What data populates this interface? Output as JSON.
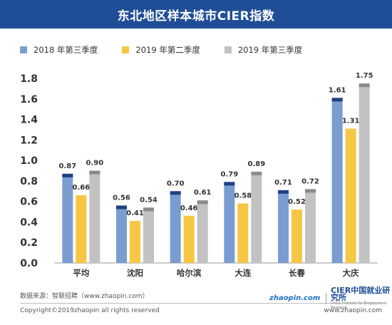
{
  "header": {
    "title": "东北地区样本城市CIER指数"
  },
  "legend": [
    {
      "label": "2018 年第三季度",
      "color": "#7a9dd0"
    },
    {
      "label": "2019 年第二季度",
      "color": "#f6c744"
    },
    {
      "label": "2019 年第三季度",
      "color": "#c2c2c2"
    }
  ],
  "chart_data": {
    "type": "bar",
    "categories": [
      "平均",
      "沈阳",
      "哈尔滨",
      "大连",
      "长春",
      "大庆"
    ],
    "series": [
      {
        "name": "2018 年第三季度",
        "values": [
          0.87,
          0.56,
          0.7,
          0.79,
          0.71,
          1.61
        ],
        "color": "#7a9dd0",
        "cap": "#1f3f84"
      },
      {
        "name": "2019 年第二季度",
        "values": [
          0.66,
          0.41,
          0.46,
          0.58,
          0.52,
          1.31
        ],
        "color": "#f6c744",
        "cap": "#f6c744"
      },
      {
        "name": "2019 年第三季度",
        "values": [
          0.9,
          0.54,
          0.61,
          0.89,
          0.72,
          1.75
        ],
        "color": "#c2c2c2",
        "cap": "#8a8a8a"
      }
    ],
    "data_labels": [
      [
        "0.87",
        "0.56",
        "0.70",
        "0.79",
        "0.71",
        "1.61"
      ],
      [
        "0.66",
        "0.41",
        "0.46",
        "0.58",
        "0.52",
        "1.31"
      ],
      [
        "0.90",
        "0.54",
        "0.61",
        "0.89",
        "0.72",
        "1.75"
      ]
    ],
    "y_ticks": [
      "0.0",
      "0.2",
      "0.4",
      "0.6",
      "0.8",
      "1.0",
      "1.2",
      "1.4",
      "1.6",
      "1.8"
    ],
    "ylim": [
      0,
      1.8
    ],
    "grid": false,
    "legend_position": "top-left"
  },
  "footer": {
    "source": "数据来源：智联招聘（www.zhaopin.com）",
    "copyright": "Copyright©2019zhaopin all rights reserved",
    "url": "www.zhaopin.com",
    "logo_zhaopin": "zhaopin.com",
    "logo_cier": "CIER中国就业研究所",
    "logo_cier_sub": "China Institute for Employment Research"
  }
}
